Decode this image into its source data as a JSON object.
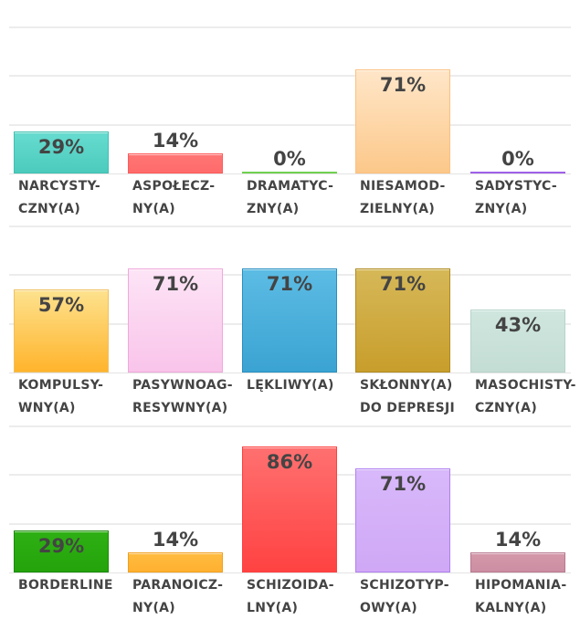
{
  "chart_data": [
    {
      "type": "bar",
      "ylim": [
        0,
        100
      ],
      "yticks": [
        0,
        33.3,
        66.7,
        100
      ],
      "grid": true,
      "unit": "%",
      "categories": [
        [
          "NARCYSTY-",
          "CZNY(A)"
        ],
        [
          "ASPOŁECZ-",
          "NY(A)"
        ],
        [
          "DRAMATYC-",
          "ZNY(A)"
        ],
        [
          "NIESAMOD-",
          "ZIELNY(A)"
        ],
        [
          "SADYSTYC-",
          "ZNY(A)"
        ]
      ],
      "values": [
        29,
        14,
        0,
        71,
        0
      ],
      "labels": [
        "29%",
        "14%",
        "0%",
        "71%",
        "0%"
      ],
      "colors": [
        [
          "#66dccf",
          "#4ccbbd"
        ],
        [
          "#ff7575",
          "#ff6b6b"
        ],
        [
          "#8fe86a",
          "#7fe05a"
        ],
        [
          "#ffe6c8",
          "#fcc88a"
        ],
        [
          "#c090f8",
          "#b070f0"
        ]
      ],
      "borders": [
        "#40c0b0",
        "#ff5a5a",
        "#70d050",
        "#fcc080",
        "#a060e8"
      ]
    },
    {
      "type": "bar",
      "ylim": [
        0,
        100
      ],
      "yticks": [
        0,
        33.3,
        66.7,
        100
      ],
      "grid": true,
      "unit": "%",
      "categories": [
        [
          "KOMPULSY-",
          "WNY(A)"
        ],
        [
          "PASYWNOAG-",
          "RESYWNY(A)"
        ],
        [
          "LĘKLIWY(A)"
        ],
        [
          "SKŁONNY(A)",
          "DO DEPRESJI"
        ],
        [
          "MASOCHISTY-",
          "CZNY(A)"
        ]
      ],
      "values": [
        57,
        71,
        71,
        71,
        43
      ],
      "labels": [
        "57%",
        "71%",
        "71%",
        "71%",
        "43%"
      ],
      "colors": [
        [
          "#fde28e",
          "#ffb42c"
        ],
        [
          "#fde4f6",
          "#f9c4ea"
        ],
        [
          "#5cbce4",
          "#3ba3d2"
        ],
        [
          "#d6b858",
          "#c89e2c"
        ],
        [
          "#cfe6de",
          "#c4ddd4"
        ]
      ],
      "borders": [
        "#f0c060",
        "#f0a8dc",
        "#2890c0",
        "#b08a20",
        "#b8d4ca"
      ]
    },
    {
      "type": "bar",
      "ylim": [
        0,
        100
      ],
      "yticks": [
        0,
        33.3,
        66.7,
        100
      ],
      "grid": true,
      "unit": "%",
      "categories": [
        [
          "BORDERLINE"
        ],
        [
          "PARANOICZ-",
          "NY(A)"
        ],
        [
          "SCHIZOIDA-",
          "LNY(A)"
        ],
        [
          "SCHIZOTYP-",
          "OWY(A)"
        ],
        [
          "HIPOMANIA-",
          "KALNY(A)"
        ]
      ],
      "values": [
        29,
        14,
        86,
        71,
        14
      ],
      "labels": [
        "29%",
        "14%",
        "86%",
        "71%",
        "14%"
      ],
      "colors": [
        [
          "#2eb014",
          "#24a40a"
        ],
        [
          "#ffbc40",
          "#ffb030"
        ],
        [
          "#ff7070",
          "#ff4242"
        ],
        [
          "#d8b8fa",
          "#d0a8f6"
        ],
        [
          "#d498aa",
          "#cc8ea2"
        ]
      ],
      "borders": [
        "#1a8a08",
        "#f0a020",
        "#ff4040",
        "#b080f0",
        "#b87890"
      ]
    }
  ]
}
